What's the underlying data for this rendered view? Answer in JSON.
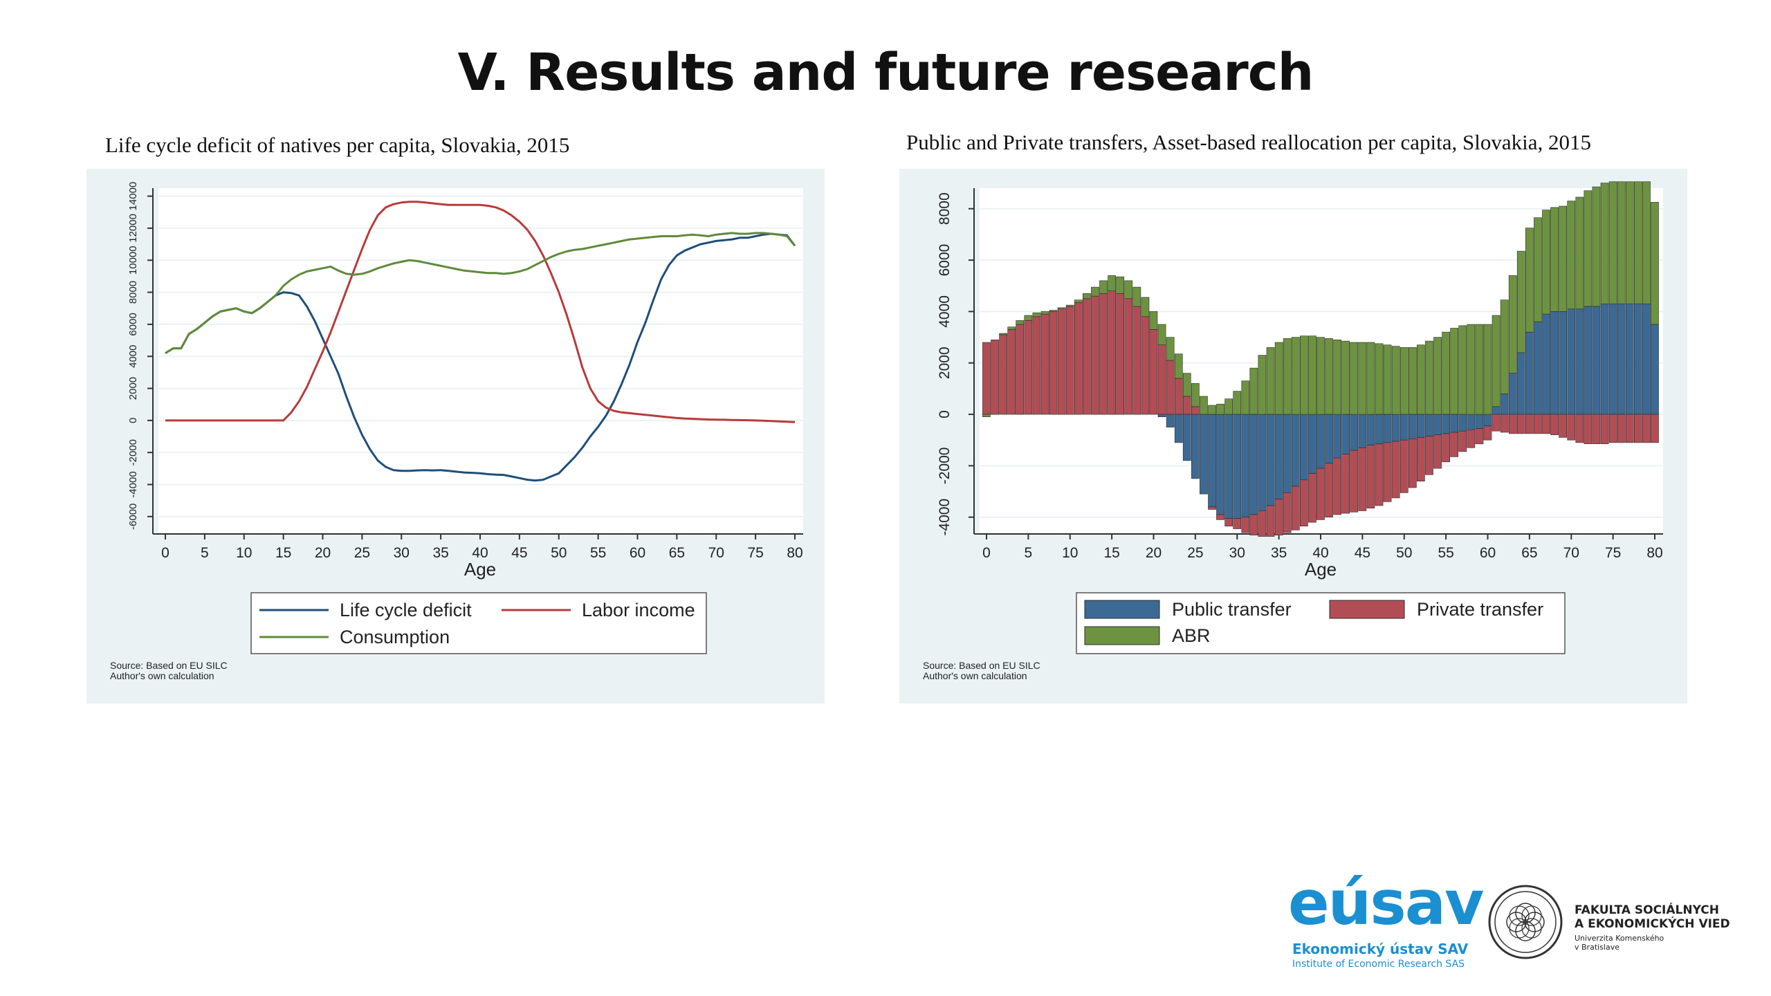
{
  "slide": {
    "title": "V. Results and future research"
  },
  "chart_data": [
    {
      "type": "line",
      "title": "Life cycle deficit of natives per capita, Slovakia, 2015",
      "xlabel": "Age",
      "ylabel": "",
      "xlim": [
        0,
        80
      ],
      "ylim": [
        -7000,
        14500
      ],
      "x_ticks": [
        0,
        5,
        10,
        15,
        20,
        25,
        30,
        35,
        40,
        45,
        50,
        55,
        60,
        65,
        70,
        75,
        80
      ],
      "y_ticks": [
        -6000,
        -4000,
        -2000,
        0,
        2000,
        4000,
        6000,
        8000,
        10000,
        12000,
        14000
      ],
      "y_tick_labels": [
        "-6000",
        "-4000",
        "-2000",
        "0",
        "2000",
        "4000",
        "6000",
        "8000",
        "10000",
        "12000",
        "14000"
      ],
      "grid": true,
      "legend_position": "bottom",
      "x": [
        0,
        1,
        2,
        3,
        4,
        5,
        6,
        7,
        8,
        9,
        10,
        11,
        12,
        13,
        14,
        15,
        16,
        17,
        18,
        19,
        20,
        21,
        22,
        23,
        24,
        25,
        26,
        27,
        28,
        29,
        30,
        31,
        32,
        33,
        34,
        35,
        36,
        37,
        38,
        39,
        40,
        41,
        42,
        43,
        44,
        45,
        46,
        47,
        48,
        49,
        50,
        51,
        52,
        53,
        54,
        55,
        56,
        57,
        58,
        59,
        60,
        61,
        62,
        63,
        64,
        65,
        66,
        67,
        68,
        69,
        70,
        71,
        72,
        73,
        74,
        75,
        76,
        77,
        78,
        79,
        80
      ],
      "series": [
        {
          "name": "Life cycle deficit",
          "color": "#1f4e79",
          "values": [
            4200,
            4500,
            4500,
            5400,
            5700,
            6100,
            6500,
            6800,
            6900,
            7000,
            6800,
            6700,
            7000,
            7400,
            7800,
            8000,
            7950,
            7800,
            7100,
            6200,
            5100,
            4000,
            2900,
            1500,
            200,
            -900,
            -1800,
            -2500,
            -2900,
            -3100,
            -3150,
            -3150,
            -3120,
            -3100,
            -3120,
            -3100,
            -3150,
            -3200,
            -3250,
            -3270,
            -3300,
            -3350,
            -3380,
            -3400,
            -3500,
            -3600,
            -3700,
            -3750,
            -3700,
            -3500,
            -3300,
            -2800,
            -2300,
            -1700,
            -1000,
            -400,
            300,
            1200,
            2300,
            3500,
            4900,
            6100,
            7500,
            8800,
            9700,
            10300,
            10600,
            10800,
            11000,
            11100,
            11200,
            11250,
            11300,
            11400,
            11400,
            11500,
            11600,
            11650,
            11600,
            11550,
            10900
          ]
        },
        {
          "name": "Labor income",
          "color": "#b83a3a",
          "values": [
            0,
            0,
            0,
            0,
            0,
            0,
            0,
            0,
            0,
            0,
            0,
            0,
            0,
            0,
            0,
            0,
            500,
            1200,
            2100,
            3200,
            4300,
            5500,
            6800,
            8100,
            9400,
            10700,
            11900,
            12800,
            13300,
            13500,
            13600,
            13650,
            13650,
            13600,
            13550,
            13500,
            13450,
            13450,
            13450,
            13450,
            13450,
            13400,
            13300,
            13100,
            12800,
            12400,
            11900,
            11200,
            10300,
            9200,
            8000,
            6600,
            5000,
            3300,
            2000,
            1200,
            800,
            600,
            500,
            450,
            400,
            350,
            300,
            250,
            200,
            150,
            120,
            100,
            80,
            60,
            50,
            40,
            30,
            20,
            10,
            0,
            -20,
            -40,
            -60,
            -80,
            -100
          ]
        },
        {
          "name": "Consumption",
          "color": "#5f8a3a",
          "values": [
            4200,
            4500,
            4500,
            5400,
            5700,
            6100,
            6500,
            6800,
            6900,
            7000,
            6800,
            6700,
            7000,
            7400,
            7800,
            8400,
            8800,
            9100,
            9300,
            9400,
            9500,
            9600,
            9350,
            9150,
            9100,
            9150,
            9300,
            9500,
            9650,
            9800,
            9900,
            10000,
            9950,
            9850,
            9750,
            9650,
            9550,
            9450,
            9350,
            9300,
            9250,
            9200,
            9200,
            9150,
            9200,
            9300,
            9450,
            9700,
            9950,
            10200,
            10400,
            10550,
            10650,
            10700,
            10800,
            10900,
            11000,
            11100,
            11200,
            11300,
            11350,
            11400,
            11450,
            11500,
            11500,
            11500,
            11550,
            11600,
            11550,
            11500,
            11600,
            11650,
            11700,
            11650,
            11650,
            11700,
            11700,
            11650,
            11600,
            11500,
            10900
          ]
        }
      ],
      "notes": [
        "Source: Based on EU SILC",
        "Author's own calculation"
      ]
    },
    {
      "type": "bar",
      "stacked": true,
      "title": "Public and Private transfers, Asset-based reallocation per capita, Slovakia, 2015",
      "xlabel": "Age",
      "ylabel": "",
      "xlim": [
        0,
        80
      ],
      "ylim": [
        -4600,
        8800
      ],
      "x_ticks": [
        0,
        5,
        10,
        15,
        20,
        25,
        30,
        35,
        40,
        45,
        50,
        55,
        60,
        65,
        70,
        75,
        80
      ],
      "y_ticks": [
        -4000,
        -2000,
        0,
        2000,
        4000,
        6000,
        8000
      ],
      "y_tick_labels": [
        "-4000",
        "-2000",
        "0",
        "2000",
        "4000",
        "6000",
        "8000"
      ],
      "grid": true,
      "legend_position": "bottom",
      "x": [
        0,
        1,
        2,
        3,
        4,
        5,
        6,
        7,
        8,
        9,
        10,
        11,
        12,
        13,
        14,
        15,
        16,
        17,
        18,
        19,
        20,
        21,
        22,
        23,
        24,
        25,
        26,
        27,
        28,
        29,
        30,
        31,
        32,
        33,
        34,
        35,
        36,
        37,
        38,
        39,
        40,
        41,
        42,
        43,
        44,
        45,
        46,
        47,
        48,
        49,
        50,
        51,
        52,
        53,
        54,
        55,
        56,
        57,
        58,
        59,
        60,
        61,
        62,
        63,
        64,
        65,
        66,
        67,
        68,
        69,
        70,
        71,
        72,
        73,
        74,
        75,
        76,
        77,
        78,
        79,
        80
      ],
      "series": [
        {
          "name": "Public transfer",
          "color": "#3d6a94",
          "values": [
            0,
            0,
            0,
            0,
            0,
            0,
            0,
            0,
            0,
            0,
            0,
            0,
            0,
            0,
            0,
            0,
            0,
            0,
            0,
            0,
            0,
            -100,
            -500,
            -1100,
            -1800,
            -2500,
            -3100,
            -3600,
            -3900,
            -4050,
            -4050,
            -4000,
            -3900,
            -3750,
            -3550,
            -3300,
            -3050,
            -2800,
            -2550,
            -2300,
            -2100,
            -1900,
            -1700,
            -1550,
            -1400,
            -1300,
            -1200,
            -1150,
            -1100,
            -1050,
            -1000,
            -950,
            -900,
            -850,
            -800,
            -750,
            -700,
            -650,
            -600,
            -550,
            -450,
            300,
            800,
            1600,
            2400,
            3200,
            3600,
            3900,
            4000,
            4000,
            4100,
            4100,
            4200,
            4200,
            4300,
            4300,
            4300,
            4300,
            4300,
            4300,
            3500
          ]
        },
        {
          "name": "Private transfer",
          "color": "#b24d55",
          "values": [
            2800,
            2900,
            3100,
            3300,
            3500,
            3650,
            3800,
            3900,
            4000,
            4100,
            4200,
            4350,
            4500,
            4600,
            4700,
            4800,
            4700,
            4500,
            4200,
            3800,
            3300,
            2700,
            2100,
            1400,
            700,
            300,
            0,
            -100,
            -200,
            -300,
            -400,
            -600,
            -800,
            -1000,
            -1200,
            -1400,
            -1550,
            -1700,
            -1800,
            -1900,
            -2000,
            -2100,
            -2200,
            -2300,
            -2400,
            -2450,
            -2450,
            -2400,
            -2300,
            -2200,
            -2050,
            -1900,
            -1700,
            -1500,
            -1300,
            -1100,
            -950,
            -800,
            -700,
            -600,
            -550,
            -650,
            -700,
            -750,
            -750,
            -750,
            -750,
            -750,
            -800,
            -900,
            -1000,
            -1100,
            -1150,
            -1150,
            -1150,
            -1100,
            -1100,
            -1100,
            -1100,
            -1100,
            -1100
          ]
        },
        {
          "name": "ABR",
          "color": "#6d9340",
          "values": [
            -100,
            0,
            50,
            100,
            150,
            200,
            150,
            100,
            50,
            50,
            50,
            100,
            200,
            350,
            500,
            600,
            650,
            700,
            750,
            750,
            700,
            800,
            900,
            950,
            900,
            900,
            700,
            350,
            400,
            600,
            900,
            1300,
            1800,
            2300,
            2600,
            2800,
            2950,
            3000,
            3050,
            3050,
            3000,
            2950,
            2900,
            2850,
            2800,
            2800,
            2800,
            2750,
            2700,
            2650,
            2600,
            2600,
            2700,
            2850,
            3000,
            3200,
            3350,
            3450,
            3500,
            3500,
            3500,
            3550,
            3650,
            3800,
            3950,
            4050,
            4050,
            4050,
            4050,
            4100,
            4200,
            4350,
            4500,
            4650,
            4700,
            4750,
            4750,
            4750,
            4750,
            4750,
            4750
          ]
        }
      ],
      "notes": [
        "Source: Based on EU SILC",
        "Author's own calculation"
      ]
    }
  ],
  "logos": {
    "eusav_word": "eúsav",
    "eusav_line1": "Ekonomický ústav SAV",
    "eusav_line2": "Institute of Economic Research SAS",
    "fsev_line1": "FAKULTA SOCIÁLNYCH",
    "fsev_line2": "A EKONOMICKÝCH VIED",
    "fsev_line3": "Univerzita Komenského",
    "fsev_line4": "v Bratislave"
  }
}
